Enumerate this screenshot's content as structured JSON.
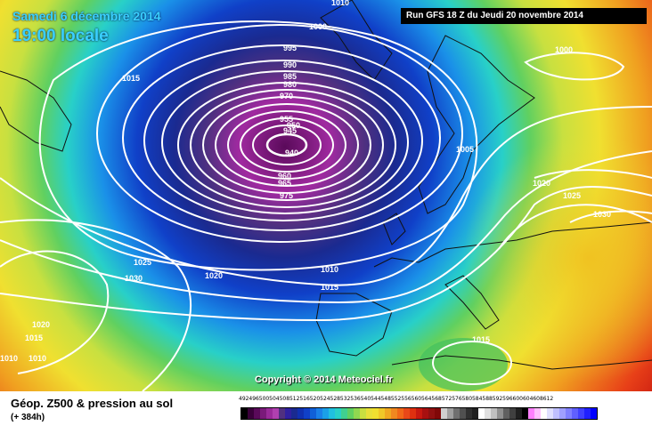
{
  "header": {
    "date": "Samedi 6 décembre 2014",
    "time": "19:00 locale",
    "run": "Run GFS 18 Z du Jeudi 20 novembre 2014"
  },
  "copyright": "Copyright © 2014 Meteociel.fr",
  "footer": {
    "title": "Géop. Z500 & pression au sol",
    "subtitle": "(+ 384h)"
  },
  "scale_labels": [
    "492",
    "496",
    "500",
    "504",
    "508",
    "512",
    "516",
    "520",
    "524",
    "528",
    "532",
    "536",
    "540",
    "544",
    "548",
    "552",
    "556",
    "560",
    "564",
    "568",
    "572",
    "576",
    "580",
    "584",
    "588",
    "592",
    "596",
    "600",
    "604",
    "608",
    "612"
  ],
  "isobar_labels": [
    "1010",
    "1000",
    "995",
    "990",
    "985",
    "980",
    "970",
    "955",
    "950",
    "945",
    "940",
    "960",
    "965",
    "975",
    "1015",
    "1000",
    "1005",
    "1020",
    "1025",
    "1030",
    "1025",
    "1030",
    "1020",
    "1010",
    "1015",
    "1020",
    "1015",
    "1010",
    "1010",
    "1015"
  ],
  "colors": {
    "low_center": "#7a0a7a",
    "deep_blue": "#0a2a8a",
    "cyan": "#28d0c8",
    "green": "#7ad040",
    "yellow": "#f0e030",
    "orange": "#f08020",
    "red": "#e02010"
  }
}
